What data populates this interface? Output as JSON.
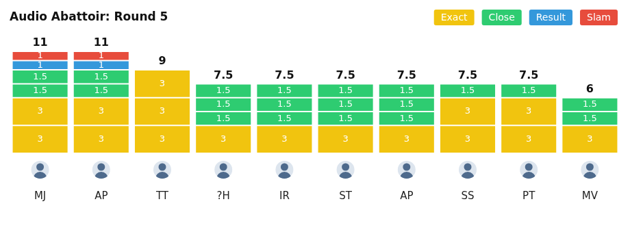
{
  "chart_data": {
    "type": "bar",
    "title": "Audio Abattoir: Round 5",
    "categories": [
      "MJ",
      "AP",
      "TT",
      "?H",
      "IR",
      "ST",
      "AP",
      "SS",
      "PT",
      "MV"
    ],
    "series": [
      {
        "name": "Exact",
        "color": "#f1c40f",
        "values": [
          [
            3,
            3
          ],
          [
            3,
            3
          ],
          [
            3,
            3,
            3
          ],
          [
            3
          ],
          [
            3
          ],
          [
            3
          ],
          [
            3
          ],
          [
            3,
            3
          ],
          [
            3,
            3
          ],
          [
            3
          ]
        ]
      },
      {
        "name": "Close",
        "color": "#2ecc71",
        "values": [
          [
            1.5,
            1.5
          ],
          [
            1.5,
            1.5
          ],
          [],
          [
            1.5,
            1.5,
            1.5
          ],
          [
            1.5,
            1.5,
            1.5
          ],
          [
            1.5,
            1.5,
            1.5
          ],
          [
            1.5,
            1.5,
            1.5
          ],
          [
            1.5
          ],
          [
            1.5
          ],
          [
            1.5,
            1.5
          ]
        ]
      },
      {
        "name": "Result",
        "color": "#3498db",
        "values": [
          [
            1
          ],
          [
            1
          ],
          [],
          [],
          [],
          [],
          [],
          [],
          [],
          []
        ]
      },
      {
        "name": "Slam",
        "color": "#e74c3c",
        "values": [
          [
            1
          ],
          [
            1
          ],
          [],
          [],
          [],
          [],
          [],
          [],
          [],
          []
        ]
      }
    ],
    "totals": [
      11,
      11,
      9,
      7.5,
      7.5,
      7.5,
      7.5,
      7.5,
      7.5,
      6
    ],
    "stacked": true,
    "data_labels": true,
    "legend": "top right",
    "grid": false,
    "tick_labels": "x",
    "ylim": [
      0,
      11
    ]
  }
}
